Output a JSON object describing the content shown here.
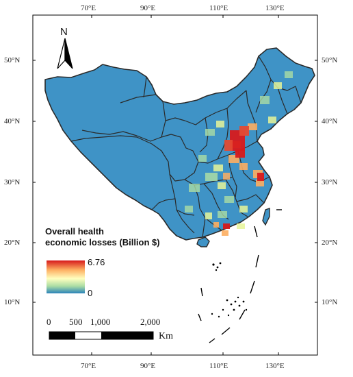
{
  "map": {
    "axes": {
      "top_lon_labels": [
        "70°E",
        "90°E",
        "110°E",
        "130°E"
      ],
      "bottom_lon_labels": [
        "70°E",
        "90°E",
        "110°E",
        "130°E"
      ],
      "left_lat_labels": [
        "50°N",
        "40°N",
        "30°N",
        "20°N",
        "10°N"
      ],
      "right_lat_labels": [
        "50°N",
        "40°N",
        "30°N",
        "20°N",
        "10°N"
      ]
    },
    "north_arrow": {
      "label": "N"
    },
    "legend": {
      "title_line1": "Overall health",
      "title_line2": "economic losses (Billion $)",
      "max_label": "6.76",
      "min_label": "0",
      "colors": [
        "#d7191c",
        "#fdae61",
        "#ffffbf",
        "#abdda4",
        "#2b83ba"
      ]
    },
    "scale_bar": {
      "labels": [
        "0",
        "500",
        "1,000",
        "2,000"
      ],
      "unit": "Km"
    },
    "colors": {
      "land": "#3f93c6",
      "border": "#2a2a2a",
      "frame": "#000000"
    }
  }
}
